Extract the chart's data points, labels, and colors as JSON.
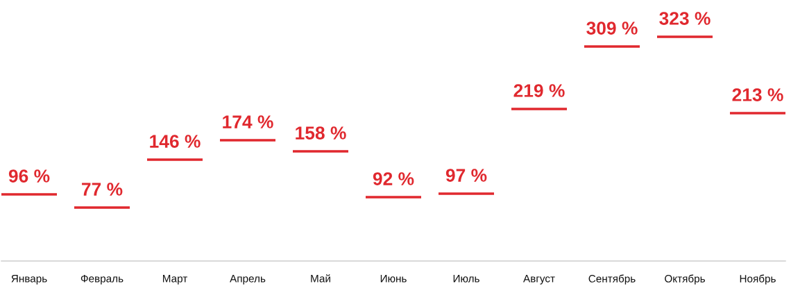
{
  "chart_data": {
    "type": "other",
    "categories": [
      "Январь",
      "Февраль",
      "Март",
      "Апрель",
      "Май",
      "Июнь",
      "Июль",
      "Август",
      "Сентябрь",
      "Октябрь",
      "Ноябрь"
    ],
    "values": [
      96,
      77,
      146,
      174,
      158,
      92,
      97,
      219,
      309,
      323,
      213
    ],
    "value_labels": [
      "96 %",
      "77 %",
      "146 %",
      "174 %",
      "158 %",
      "92 %",
      "97 %",
      "219 %",
      "309 %",
      "323 %",
      "213 %"
    ],
    "color": "#e0282e"
  }
}
